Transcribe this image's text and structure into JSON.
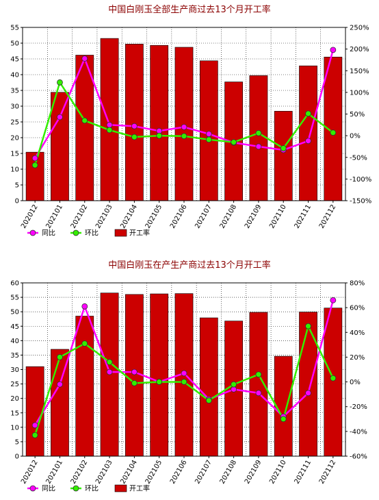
{
  "chart_data": [
    {
      "type": "bar",
      "title": "中国白刚玉全部生产商过去13个月开工率",
      "categories": [
        "202012",
        "202101",
        "202102",
        "202103",
        "202104",
        "202105",
        "202106",
        "202107",
        "202108",
        "202109",
        "202110",
        "202111",
        "202112"
      ],
      "ylim": [
        0,
        55
      ],
      "yticks": [
        0,
        5,
        10,
        15,
        20,
        25,
        30,
        35,
        40,
        45,
        50,
        55
      ],
      "y2lim": [
        -150,
        250
      ],
      "y2ticks": [
        -150,
        -100,
        -50,
        0,
        50,
        100,
        150,
        200,
        250
      ],
      "y2tick_labels": [
        "-150%",
        "-100%",
        "-50%",
        "0%",
        "50%",
        "100%",
        "150%",
        "200%",
        "250%"
      ],
      "series": [
        {
          "name": "开工率",
          "type": "bar",
          "axis": "left",
          "color": "#cc0000",
          "values": [
            15.4,
            34.4,
            46.2,
            51.5,
            49.7,
            49.3,
            48.7,
            44.4,
            37.7,
            39.7,
            28.4,
            42.8,
            45.6
          ]
        },
        {
          "name": "同比",
          "type": "line",
          "axis": "right",
          "color": "#ff00ff",
          "values": [
            -52,
            43,
            178,
            25,
            22,
            11,
            20,
            4,
            -16,
            -25,
            -33,
            -12,
            198
          ]
        },
        {
          "name": "环比",
          "type": "line",
          "axis": "right",
          "color": "#33ee00",
          "values": [
            -68,
            123,
            35,
            13,
            -3,
            0,
            -1,
            -9,
            -15,
            6,
            -29,
            51,
            7
          ]
        }
      ],
      "legend": {
        "labels": [
          "同比",
          "环比",
          "开工率"
        ],
        "position": "bottom-left"
      },
      "grid": true
    },
    {
      "type": "bar",
      "title": "中国白刚玉在产生产商过去13个月开工率",
      "categories": [
        "202012",
        "202101",
        "202102",
        "202103",
        "202104",
        "202105",
        "202106",
        "202107",
        "202108",
        "202109",
        "202110",
        "202111",
        "202112"
      ],
      "ylim": [
        0,
        60
      ],
      "yticks": [
        0,
        5,
        10,
        15,
        20,
        25,
        30,
        35,
        40,
        45,
        50,
        55,
        60
      ],
      "y2lim": [
        -60,
        80
      ],
      "y2ticks": [
        -60,
        -40,
        -20,
        0,
        20,
        40,
        60,
        80
      ],
      "y2tick_labels": [
        "-60%",
        "-40%",
        "-20%",
        "0%",
        "20%",
        "40%",
        "60%",
        "80%"
      ],
      "series": [
        {
          "name": "开工率",
          "type": "bar",
          "axis": "left",
          "color": "#cc0000",
          "values": [
            31.0,
            37.0,
            48.5,
            56.5,
            56.0,
            56.2,
            56.3,
            47.9,
            46.8,
            49.8,
            34.6,
            49.9,
            51.3
          ]
        },
        {
          "name": "同比",
          "type": "line",
          "axis": "right",
          "color": "#ff00ff",
          "values": [
            -35,
            -2,
            61,
            8,
            8,
            0,
            7,
            -14,
            -6,
            -9,
            -28,
            -9,
            66
          ]
        },
        {
          "name": "环比",
          "type": "line",
          "axis": "right",
          "color": "#33ee00",
          "values": [
            -43,
            20,
            31,
            16,
            -1,
            0,
            0,
            -15,
            -2,
            6,
            -30,
            45,
            3
          ]
        }
      ],
      "legend": {
        "labels": [
          "同比",
          "环比",
          "开工率"
        ],
        "position": "bottom-left"
      },
      "grid": true
    }
  ]
}
